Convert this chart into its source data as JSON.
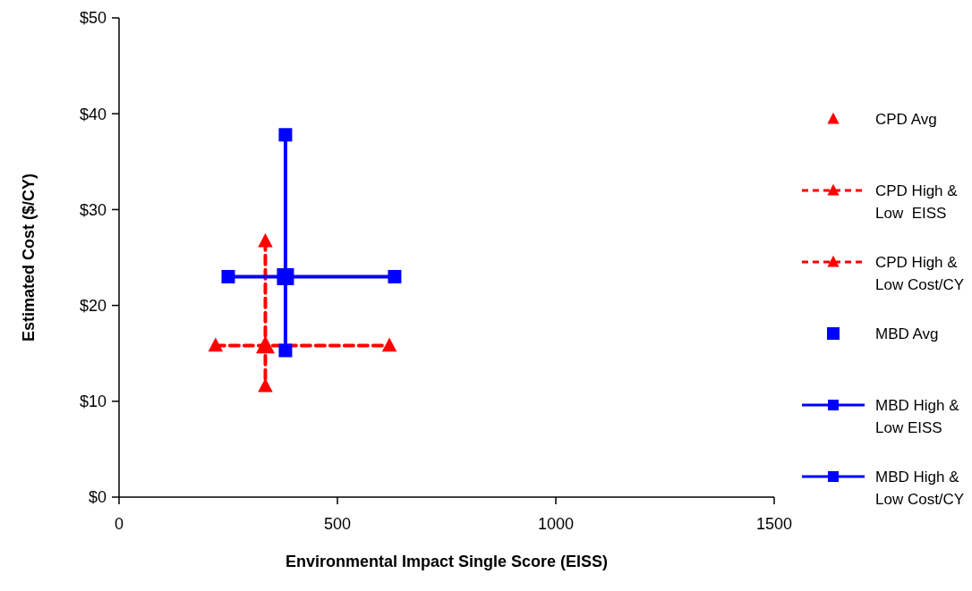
{
  "chart_data": {
    "type": "scatter",
    "xlabel": "Environmental Impact Single Score (EISS)",
    "ylabel": "Estimated Cost ($/CY)",
    "xlim": [
      0,
      1500
    ],
    "xticks": [
      0,
      500,
      1000,
      1500
    ],
    "ylim": [
      0,
      50
    ],
    "yticks": [
      {
        "value": 0,
        "label": "$0"
      },
      {
        "value": 10,
        "label": "$10"
      },
      {
        "value": 20,
        "label": "$20"
      },
      {
        "value": 30,
        "label": "$30"
      },
      {
        "value": 40,
        "label": "$40"
      },
      {
        "value": 50,
        "label": "$50"
      }
    ],
    "grid": false,
    "legend": "right",
    "series": [
      {
        "name": "CPD Avg",
        "type": "scatter",
        "color": "#ff0000",
        "marker": "triangle",
        "x": [
          335
        ],
        "values": [
          15.8
        ]
      },
      {
        "name": "CPD High & Low  EISS",
        "type": "line",
        "color": "#ff0000",
        "marker": "triangle",
        "line_style": "dashed",
        "x": [
          221,
          619
        ],
        "values": [
          15.8,
          15.8
        ]
      },
      {
        "name": "CPD High & Low Cost/CY",
        "type": "line",
        "color": "#ff0000",
        "marker": "triangle",
        "line_style": "dashed",
        "x": [
          335,
          335
        ],
        "values": [
          26.7,
          11.6
        ]
      },
      {
        "name": "MBD Avg",
        "type": "scatter",
        "color": "#0000ff",
        "marker": "square",
        "x": [
          381
        ],
        "values": [
          23.0
        ]
      },
      {
        "name": "MBD High & Low EISS",
        "type": "line",
        "color": "#0000ff",
        "marker": "square",
        "line_style": "solid",
        "x": [
          250,
          631
        ],
        "values": [
          23.0,
          23.0
        ]
      },
      {
        "name": "MBD High & Low Cost/CY",
        "type": "line",
        "color": "#0000ff",
        "marker": "square",
        "line_style": "solid",
        "x": [
          381,
          381
        ],
        "values": [
          37.8,
          15.3
        ]
      }
    ]
  }
}
